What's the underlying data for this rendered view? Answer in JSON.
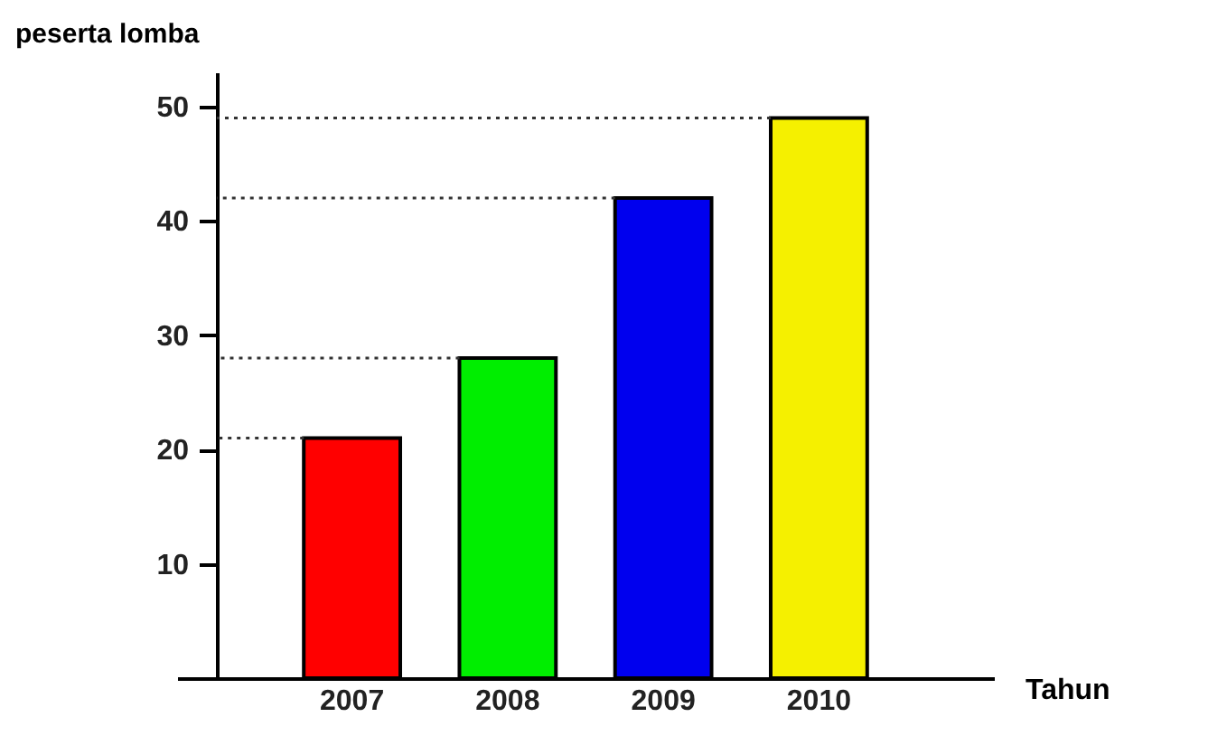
{
  "chart_data": {
    "type": "bar",
    "ylabel": "peserta lomba",
    "xlabel": "Tahun",
    "categories": [
      "2007",
      "2008",
      "2009",
      "2010"
    ],
    "values": [
      21,
      28,
      42,
      49
    ],
    "colors": [
      "#ff0000",
      "#00ee00",
      "#0000ee",
      "#f5f000"
    ],
    "ylim": [
      0,
      53
    ],
    "yticks": [
      10,
      20,
      30,
      40,
      50
    ],
    "grid": false,
    "ref_lines": [
      {
        "axis": "y",
        "value": 21,
        "line_style": "dotted",
        "color": "#333333"
      },
      {
        "axis": "y",
        "value": 28,
        "line_style": "dotted",
        "color": "#333333"
      },
      {
        "axis": "y",
        "value": 42,
        "line_style": "dotted",
        "color": "#333333"
      },
      {
        "axis": "y",
        "value": 49,
        "line_style": "dotted",
        "color": "#333333"
      }
    ]
  }
}
